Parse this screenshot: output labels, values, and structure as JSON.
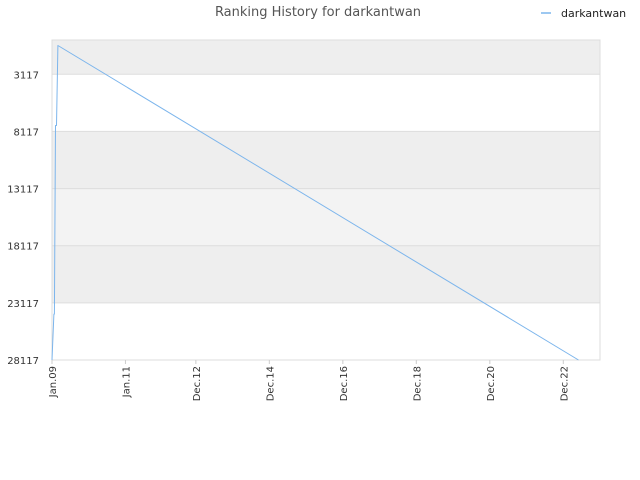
{
  "chart_data": {
    "type": "line",
    "title": "Ranking History for darkantwan",
    "xlabel": "",
    "ylabel": "",
    "y_inverted": true,
    "ylim": [
      28117,
      117
    ],
    "y_ticks": [
      3117,
      8117,
      13117,
      18117,
      23117,
      28117
    ],
    "y_tick_labels": [
      "3117",
      "8117",
      "13117",
      "18117",
      "23117",
      "28117"
    ],
    "x_ticks": [
      "2009-01-01",
      "2011-01-01",
      "2012-12-01",
      "2014-12-01",
      "2016-12-01",
      "2018-12-01",
      "2020-12-01",
      "2022-12-01"
    ],
    "x_tick_labels": [
      "Jan.09",
      "Jan.11",
      "Dec.12",
      "Dec.14",
      "Dec.16",
      "Dec.18",
      "Dec.20",
      "Dec.22"
    ],
    "xlim": [
      "2009-01-01",
      "2023-12-01"
    ],
    "grid": true,
    "legend_position": "top-right",
    "series": [
      {
        "name": "darkantwan",
        "color": "#7cb5ec",
        "points": [
          {
            "x": "2009-01-01",
            "y": 28117
          },
          {
            "x": "2009-01-20",
            "y": 24100
          },
          {
            "x": "2009-01-25",
            "y": 24100
          },
          {
            "x": "2009-02-05",
            "y": 7600
          },
          {
            "x": "2009-02-15",
            "y": 7600
          },
          {
            "x": "2009-03-01",
            "y": 600
          },
          {
            "x": "2023-05-01",
            "y": 28117
          }
        ]
      }
    ]
  }
}
